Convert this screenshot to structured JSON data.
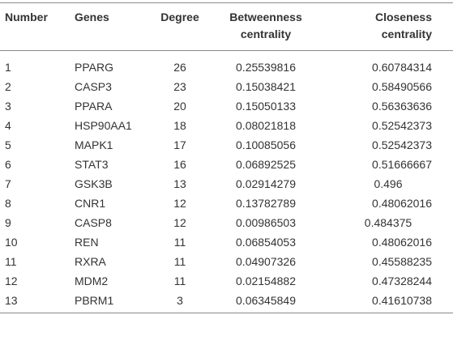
{
  "table": {
    "headers": {
      "number": "Number",
      "genes": "Genes",
      "degree": "Degree",
      "betweenness": [
        "Betweenness",
        "centrality"
      ],
      "closeness": [
        "Closeness",
        "centrality"
      ]
    },
    "rows": [
      {
        "number": "1",
        "gene": "PPARG",
        "degree": "26",
        "betweenness": "0.25539816",
        "closeness": "0.60784314"
      },
      {
        "number": "2",
        "gene": "CASP3",
        "degree": "23",
        "betweenness": "0.15038421",
        "closeness": "0.58490566"
      },
      {
        "number": "3",
        "gene": "PPARA",
        "degree": "20",
        "betweenness": "0.15050133",
        "closeness": "0.56363636"
      },
      {
        "number": "4",
        "gene": "HSP90AA1",
        "degree": "18",
        "betweenness": "0.08021818",
        "closeness": "0.52542373"
      },
      {
        "number": "5",
        "gene": "MAPK1",
        "degree": "17",
        "betweenness": "0.10085056",
        "closeness": "0.52542373"
      },
      {
        "number": "6",
        "gene": "STAT3",
        "degree": "16",
        "betweenness": "0.06892525",
        "closeness": "0.51666667"
      },
      {
        "number": "7",
        "gene": "GSK3B",
        "degree": "13",
        "betweenness": "0.02914279",
        "closeness": "0.496"
      },
      {
        "number": "8",
        "gene": "CNR1",
        "degree": "12",
        "betweenness": "0.13782789",
        "closeness": "0.48062016"
      },
      {
        "number": "9",
        "gene": "CASP8",
        "degree": "12",
        "betweenness": "0.00986503",
        "closeness": "0.484375"
      },
      {
        "number": "10",
        "gene": "REN",
        "degree": "11",
        "betweenness": "0.06854053",
        "closeness": "0.48062016"
      },
      {
        "number": "11",
        "gene": "RXRA",
        "degree": "11",
        "betweenness": "0.04907326",
        "closeness": "0.45588235"
      },
      {
        "number": "12",
        "gene": "MDM2",
        "degree": "11",
        "betweenness": "0.02154882",
        "closeness": "0.47328244"
      },
      {
        "number": "13",
        "gene": "PBRM1",
        "degree": "3",
        "betweenness": "0.06345849",
        "closeness": "0.41610738"
      }
    ]
  }
}
